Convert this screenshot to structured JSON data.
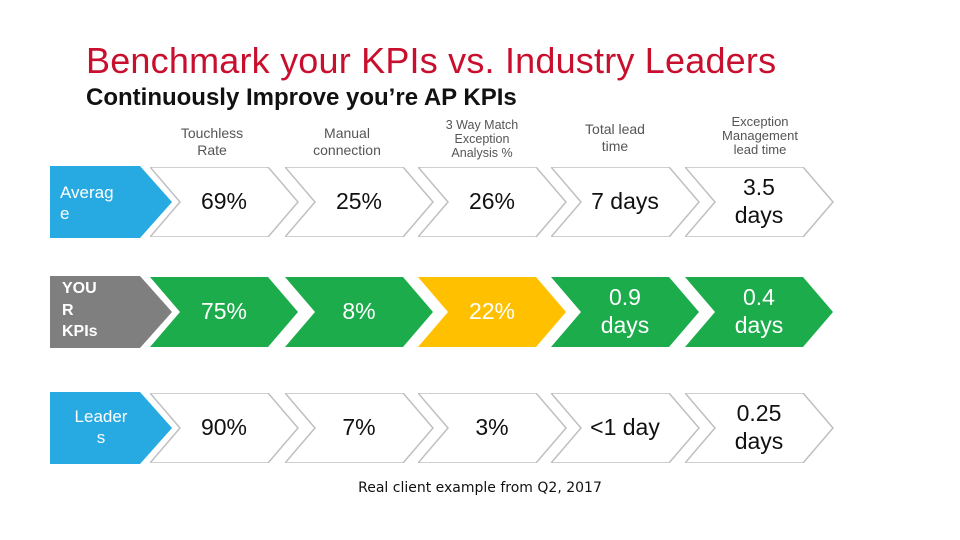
{
  "title": "Benchmark your KPIs vs. Industry Leaders",
  "subtitle": "Continuously Improve you’re AP KPIs",
  "columns": [
    "Touchless\nRate",
    "Manual\nconnection",
    "3 Way Match\nException\nAnalysis %",
    "Total lead\ntime",
    "Exception\nManagement\nlead time"
  ],
  "rows": [
    {
      "label": "Averag\ne",
      "values": [
        "69%",
        "25%",
        "26%",
        "7 days",
        "3.5\ndays"
      ]
    },
    {
      "label": "YOU\nR\nKPIs",
      "values": [
        "75%",
        "8%",
        "22%",
        "0.9\ndays",
        "0.4\ndays"
      ]
    },
    {
      "label": "Leader\ns",
      "values": [
        "90%",
        "7%",
        "3%",
        "<1 day",
        "0.25\ndays"
      ]
    }
  ],
  "colors": {
    "title": "#c8102e",
    "label_blue": "#27a9e1",
    "label_gray": "#7f7f7f",
    "green": "#1cac4b",
    "yellow": "#ffc000",
    "white_cell_stroke": "#bfbfbf"
  },
  "footnote": "Real client example from Q2, 2017"
}
